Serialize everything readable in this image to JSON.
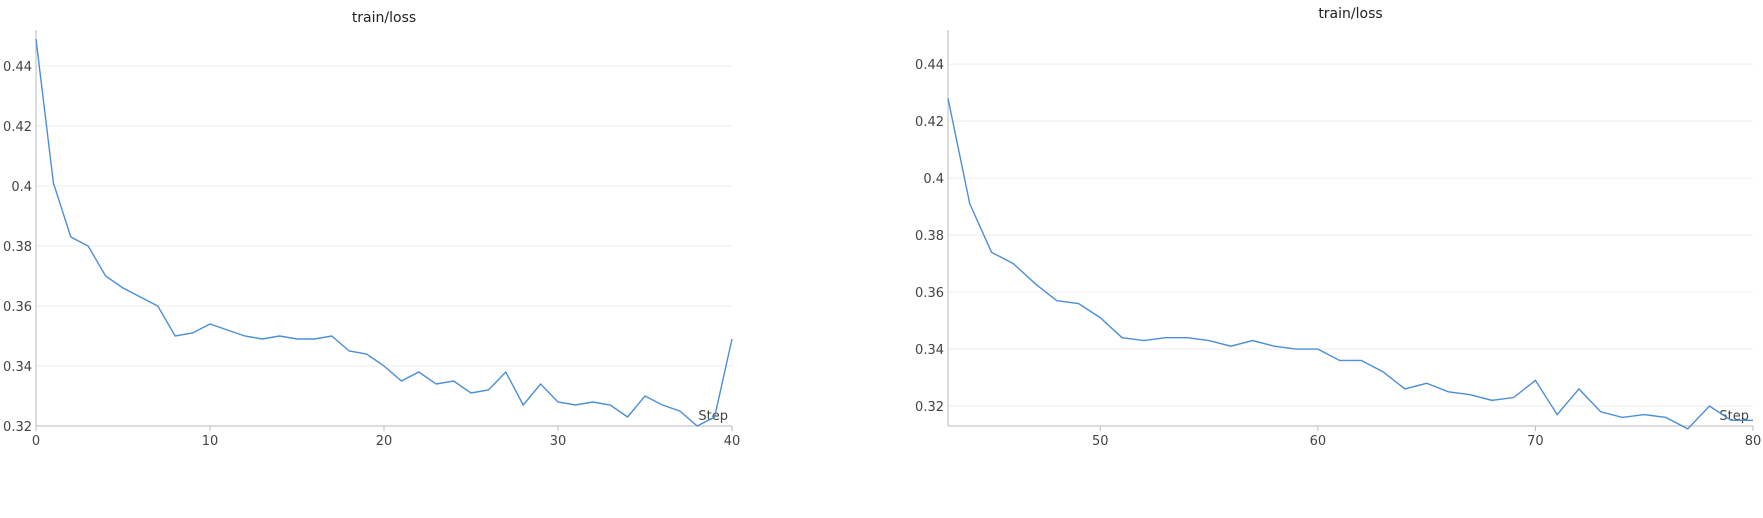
{
  "chart_data": [
    {
      "type": "line",
      "title": "train/loss",
      "xlabel": "Step",
      "ylabel": "",
      "xlim": [
        0,
        40
      ],
      "ylim": [
        0.32,
        0.452
      ],
      "xticks": [
        0,
        10,
        20,
        30,
        40
      ],
      "yticks": [
        0.32,
        0.34,
        0.36,
        0.38,
        0.4,
        0.42,
        0.44
      ],
      "ytick_labels": [
        "0.32",
        "0.34",
        "0.36",
        "0.38",
        "0.4",
        "0.42",
        "0.44"
      ],
      "grid": true,
      "series": [
        {
          "color": "#4c8fd6",
          "x": [
            0,
            1,
            2,
            3,
            4,
            5,
            6,
            7,
            8,
            9,
            10,
            11,
            12,
            13,
            14,
            15,
            16,
            17,
            18,
            19,
            20,
            21,
            22,
            23,
            24,
            25,
            26,
            27,
            28,
            29,
            30,
            31,
            32,
            33,
            34,
            35,
            36,
            37,
            38,
            39,
            40
          ],
          "y": [
            0.449,
            0.401,
            0.383,
            0.38,
            0.37,
            0.366,
            0.363,
            0.36,
            0.35,
            0.351,
            0.354,
            0.352,
            0.35,
            0.349,
            0.35,
            0.349,
            0.349,
            0.35,
            0.345,
            0.344,
            0.34,
            0.335,
            0.338,
            0.334,
            0.335,
            0.331,
            0.332,
            0.338,
            0.327,
            0.334,
            0.328,
            0.327,
            0.328,
            0.327,
            0.323,
            0.33,
            0.327,
            0.325,
            0.32,
            0.323,
            0.349
          ]
        }
      ]
    },
    {
      "type": "line",
      "title": "train/loss",
      "xlabel": "Step",
      "ylabel": "",
      "xlim": [
        43,
        80
      ],
      "ylim": [
        0.313,
        0.452
      ],
      "xticks": [
        50,
        60,
        70,
        80
      ],
      "yticks": [
        0.32,
        0.34,
        0.36,
        0.38,
        0.4,
        0.42,
        0.44
      ],
      "ytick_labels": [
        "0.32",
        "0.34",
        "0.36",
        "0.38",
        "0.4",
        "0.42",
        "0.44"
      ],
      "grid": true,
      "series": [
        {
          "color": "#4c8fd6",
          "x": [
            43,
            44,
            45,
            46,
            47,
            48,
            49,
            50,
            51,
            52,
            53,
            54,
            55,
            56,
            57,
            58,
            59,
            60,
            61,
            62,
            63,
            64,
            65,
            66,
            67,
            68,
            69,
            70,
            71,
            72,
            73,
            74,
            75,
            76,
            77,
            78,
            79,
            80
          ],
          "y": [
            0.428,
            0.391,
            0.374,
            0.37,
            0.363,
            0.357,
            0.356,
            0.351,
            0.344,
            0.343,
            0.344,
            0.344,
            0.343,
            0.341,
            0.343,
            0.341,
            0.34,
            0.34,
            0.336,
            0.336,
            0.332,
            0.326,
            0.328,
            0.325,
            0.324,
            0.322,
            0.323,
            0.329,
            0.317,
            0.326,
            0.318,
            0.316,
            0.317,
            0.316,
            0.312,
            0.32,
            0.315,
            0.315
          ]
        }
      ]
    }
  ]
}
